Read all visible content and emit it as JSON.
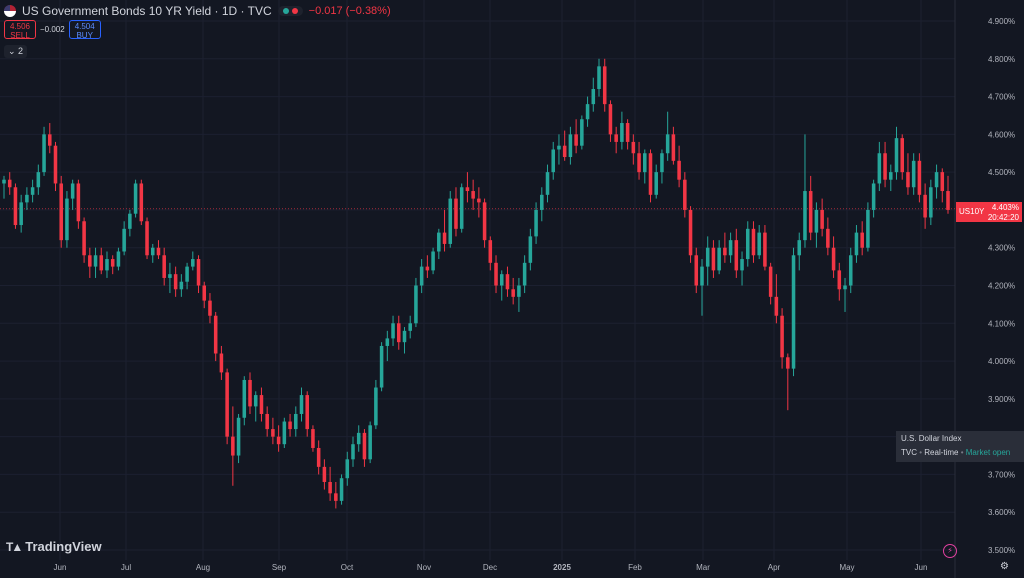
{
  "legend": {
    "title": "US Government Bonds 10 YR Yield · 1D · TVC",
    "change": "−0.017 (−0.38%)",
    "colors": {
      "up": "#26a69a",
      "down": "#f23645"
    }
  },
  "trade": {
    "sell_price": "4.506",
    "sell_label": "SELL",
    "spread": "−0.002",
    "buy_price": "4.504",
    "buy_label": "BUY"
  },
  "indicator_toggle": "⌄ 2",
  "price_tag": {
    "symbol": "US10Y",
    "value": "4.403%",
    "countdown": "20:42:20"
  },
  "info_box": {
    "title": "U.S. Dollar Index",
    "source": "TVC",
    "mode": "Real-time",
    "status": "Market open"
  },
  "brand": "TradingView",
  "chart_data": {
    "type": "candlestick",
    "title": "US Government Bonds 10 YR Yield · 1D · TVC",
    "ylim": [
      3.5,
      4.9
    ],
    "yticks": [
      "4.900%",
      "4.800%",
      "4.700%",
      "4.600%",
      "4.500%",
      "4.400%",
      "4.300%",
      "4.200%",
      "4.100%",
      "4.000%",
      "3.900%",
      "3.800%",
      "3.700%",
      "3.600%",
      "3.500%"
    ],
    "yvalues": [
      4.9,
      4.8,
      4.7,
      4.6,
      4.5,
      4.4,
      4.3,
      4.2,
      4.1,
      4.0,
      3.9,
      3.8,
      3.7,
      3.6,
      3.5
    ],
    "xticks": [
      "Jun",
      "Jul",
      "Aug",
      "Sep",
      "Oct",
      "Nov",
      "Dec",
      "2025",
      "Feb",
      "Mar",
      "Apr",
      "May",
      "Jun"
    ],
    "last_price": 4.403,
    "series": [
      {
        "o": 4.47,
        "h": 4.49,
        "l": 4.43,
        "c": 4.48
      },
      {
        "o": 4.48,
        "h": 4.5,
        "l": 4.44,
        "c": 4.46
      },
      {
        "o": 4.46,
        "h": 4.47,
        "l": 4.35,
        "c": 4.36
      },
      {
        "o": 4.36,
        "h": 4.44,
        "l": 4.34,
        "c": 4.42
      },
      {
        "o": 4.42,
        "h": 4.46,
        "l": 4.4,
        "c": 4.44
      },
      {
        "o": 4.44,
        "h": 4.48,
        "l": 4.42,
        "c": 4.46
      },
      {
        "o": 4.46,
        "h": 4.52,
        "l": 4.44,
        "c": 4.5
      },
      {
        "o": 4.5,
        "h": 4.62,
        "l": 4.49,
        "c": 4.6
      },
      {
        "o": 4.6,
        "h": 4.63,
        "l": 4.55,
        "c": 4.57
      },
      {
        "o": 4.57,
        "h": 4.58,
        "l": 4.45,
        "c": 4.47
      },
      {
        "o": 4.47,
        "h": 4.49,
        "l": 4.3,
        "c": 4.32
      },
      {
        "o": 4.32,
        "h": 4.45,
        "l": 4.3,
        "c": 4.43
      },
      {
        "o": 4.43,
        "h": 4.48,
        "l": 4.4,
        "c": 4.47
      },
      {
        "o": 4.47,
        "h": 4.48,
        "l": 4.35,
        "c": 4.37
      },
      {
        "o": 4.37,
        "h": 4.38,
        "l": 4.26,
        "c": 4.28
      },
      {
        "o": 4.28,
        "h": 4.3,
        "l": 4.22,
        "c": 4.25
      },
      {
        "o": 4.25,
        "h": 4.3,
        "l": 4.22,
        "c": 4.28
      },
      {
        "o": 4.28,
        "h": 4.3,
        "l": 4.23,
        "c": 4.24
      },
      {
        "o": 4.24,
        "h": 4.29,
        "l": 4.22,
        "c": 4.27
      },
      {
        "o": 4.27,
        "h": 4.28,
        "l": 4.23,
        "c": 4.25
      },
      {
        "o": 4.25,
        "h": 4.3,
        "l": 4.24,
        "c": 4.29
      },
      {
        "o": 4.29,
        "h": 4.37,
        "l": 4.28,
        "c": 4.35
      },
      {
        "o": 4.35,
        "h": 4.4,
        "l": 4.33,
        "c": 4.39
      },
      {
        "o": 4.39,
        "h": 4.48,
        "l": 4.38,
        "c": 4.47
      },
      {
        "o": 4.47,
        "h": 4.48,
        "l": 4.36,
        "c": 4.37
      },
      {
        "o": 4.37,
        "h": 4.38,
        "l": 4.27,
        "c": 4.28
      },
      {
        "o": 4.28,
        "h": 4.31,
        "l": 4.26,
        "c": 4.3
      },
      {
        "o": 4.3,
        "h": 4.32,
        "l": 4.27,
        "c": 4.28
      },
      {
        "o": 4.28,
        "h": 4.3,
        "l": 4.2,
        "c": 4.22
      },
      {
        "o": 4.22,
        "h": 4.26,
        "l": 4.18,
        "c": 4.23
      },
      {
        "o": 4.23,
        "h": 4.25,
        "l": 4.17,
        "c": 4.19
      },
      {
        "o": 4.19,
        "h": 4.23,
        "l": 4.17,
        "c": 4.21
      },
      {
        "o": 4.21,
        "h": 4.26,
        "l": 4.19,
        "c": 4.25
      },
      {
        "o": 4.25,
        "h": 4.29,
        "l": 4.24,
        "c": 4.27
      },
      {
        "o": 4.27,
        "h": 4.28,
        "l": 4.18,
        "c": 4.2
      },
      {
        "o": 4.2,
        "h": 4.21,
        "l": 4.14,
        "c": 4.16
      },
      {
        "o": 4.16,
        "h": 4.18,
        "l": 4.1,
        "c": 4.12
      },
      {
        "o": 4.12,
        "h": 4.13,
        "l": 4.0,
        "c": 4.02
      },
      {
        "o": 4.02,
        "h": 4.04,
        "l": 3.95,
        "c": 3.97
      },
      {
        "o": 3.97,
        "h": 3.98,
        "l": 3.78,
        "c": 3.8
      },
      {
        "o": 3.8,
        "h": 3.88,
        "l": 3.67,
        "c": 3.75
      },
      {
        "o": 3.75,
        "h": 3.86,
        "l": 3.73,
        "c": 3.85
      },
      {
        "o": 3.85,
        "h": 3.96,
        "l": 3.83,
        "c": 3.95
      },
      {
        "o": 3.95,
        "h": 3.97,
        "l": 3.86,
        "c": 3.88
      },
      {
        "o": 3.88,
        "h": 3.92,
        "l": 3.84,
        "c": 3.91
      },
      {
        "o": 3.91,
        "h": 3.93,
        "l": 3.84,
        "c": 3.86
      },
      {
        "o": 3.86,
        "h": 3.88,
        "l": 3.8,
        "c": 3.82
      },
      {
        "o": 3.82,
        "h": 3.85,
        "l": 3.78,
        "c": 3.8
      },
      {
        "o": 3.8,
        "h": 3.83,
        "l": 3.76,
        "c": 3.78
      },
      {
        "o": 3.78,
        "h": 3.85,
        "l": 3.77,
        "c": 3.84
      },
      {
        "o": 3.84,
        "h": 3.86,
        "l": 3.8,
        "c": 3.82
      },
      {
        "o": 3.82,
        "h": 3.88,
        "l": 3.8,
        "c": 3.86
      },
      {
        "o": 3.86,
        "h": 3.93,
        "l": 3.84,
        "c": 3.91
      },
      {
        "o": 3.91,
        "h": 3.92,
        "l": 3.8,
        "c": 3.82
      },
      {
        "o": 3.82,
        "h": 3.83,
        "l": 3.76,
        "c": 3.77
      },
      {
        "o": 3.77,
        "h": 3.79,
        "l": 3.7,
        "c": 3.72
      },
      {
        "o": 3.72,
        "h": 3.74,
        "l": 3.66,
        "c": 3.68
      },
      {
        "o": 3.68,
        "h": 3.72,
        "l": 3.63,
        "c": 3.65
      },
      {
        "o": 3.65,
        "h": 3.68,
        "l": 3.61,
        "c": 3.63
      },
      {
        "o": 3.63,
        "h": 3.7,
        "l": 3.62,
        "c": 3.69
      },
      {
        "o": 3.69,
        "h": 3.76,
        "l": 3.67,
        "c": 3.74
      },
      {
        "o": 3.74,
        "h": 3.8,
        "l": 3.72,
        "c": 3.78
      },
      {
        "o": 3.78,
        "h": 3.83,
        "l": 3.76,
        "c": 3.81
      },
      {
        "o": 3.81,
        "h": 3.82,
        "l": 3.72,
        "c": 3.74
      },
      {
        "o": 3.74,
        "h": 3.84,
        "l": 3.73,
        "c": 3.83
      },
      {
        "o": 3.83,
        "h": 3.95,
        "l": 3.82,
        "c": 3.93
      },
      {
        "o": 3.93,
        "h": 4.05,
        "l": 3.92,
        "c": 4.04
      },
      {
        "o": 4.04,
        "h": 4.08,
        "l": 4.0,
        "c": 4.06
      },
      {
        "o": 4.06,
        "h": 4.12,
        "l": 4.04,
        "c": 4.1
      },
      {
        "o": 4.1,
        "h": 4.12,
        "l": 4.03,
        "c": 4.05
      },
      {
        "o": 4.05,
        "h": 4.09,
        "l": 4.02,
        "c": 4.08
      },
      {
        "o": 4.08,
        "h": 4.12,
        "l": 4.06,
        "c": 4.1
      },
      {
        "o": 4.1,
        "h": 4.22,
        "l": 4.09,
        "c": 4.2
      },
      {
        "o": 4.2,
        "h": 4.27,
        "l": 4.18,
        "c": 4.25
      },
      {
        "o": 4.25,
        "h": 4.28,
        "l": 4.22,
        "c": 4.24
      },
      {
        "o": 4.24,
        "h": 4.3,
        "l": 4.23,
        "c": 4.29
      },
      {
        "o": 4.29,
        "h": 4.35,
        "l": 4.27,
        "c": 4.34
      },
      {
        "o": 4.34,
        "h": 4.4,
        "l": 4.29,
        "c": 4.31
      },
      {
        "o": 4.31,
        "h": 4.45,
        "l": 4.3,
        "c": 4.43
      },
      {
        "o": 4.43,
        "h": 4.46,
        "l": 4.33,
        "c": 4.35
      },
      {
        "o": 4.35,
        "h": 4.47,
        "l": 4.34,
        "c": 4.46
      },
      {
        "o": 4.46,
        "h": 4.5,
        "l": 4.42,
        "c": 4.45
      },
      {
        "o": 4.45,
        "h": 4.48,
        "l": 4.4,
        "c": 4.43
      },
      {
        "o": 4.43,
        "h": 4.46,
        "l": 4.38,
        "c": 4.42
      },
      {
        "o": 4.42,
        "h": 4.43,
        "l": 4.3,
        "c": 4.32
      },
      {
        "o": 4.32,
        "h": 4.33,
        "l": 4.24,
        "c": 4.26
      },
      {
        "o": 4.26,
        "h": 4.28,
        "l": 4.18,
        "c": 4.2
      },
      {
        "o": 4.2,
        "h": 4.24,
        "l": 4.16,
        "c": 4.23
      },
      {
        "o": 4.23,
        "h": 4.25,
        "l": 4.17,
        "c": 4.19
      },
      {
        "o": 4.19,
        "h": 4.22,
        "l": 4.15,
        "c": 4.17
      },
      {
        "o": 4.17,
        "h": 4.22,
        "l": 4.13,
        "c": 4.2
      },
      {
        "o": 4.2,
        "h": 4.28,
        "l": 4.18,
        "c": 4.26
      },
      {
        "o": 4.26,
        "h": 4.35,
        "l": 4.24,
        "c": 4.33
      },
      {
        "o": 4.33,
        "h": 4.42,
        "l": 4.31,
        "c": 4.4
      },
      {
        "o": 4.4,
        "h": 4.46,
        "l": 4.37,
        "c": 4.44
      },
      {
        "o": 4.44,
        "h": 4.52,
        "l": 4.42,
        "c": 4.5
      },
      {
        "o": 4.5,
        "h": 4.58,
        "l": 4.48,
        "c": 4.56
      },
      {
        "o": 4.56,
        "h": 4.6,
        "l": 4.52,
        "c": 4.57
      },
      {
        "o": 4.57,
        "h": 4.61,
        "l": 4.53,
        "c": 4.54
      },
      {
        "o": 4.54,
        "h": 4.62,
        "l": 4.52,
        "c": 4.6
      },
      {
        "o": 4.6,
        "h": 4.64,
        "l": 4.55,
        "c": 4.57
      },
      {
        "o": 4.57,
        "h": 4.65,
        "l": 4.56,
        "c": 4.64
      },
      {
        "o": 4.64,
        "h": 4.7,
        "l": 4.62,
        "c": 4.68
      },
      {
        "o": 4.68,
        "h": 4.75,
        "l": 4.66,
        "c": 4.72
      },
      {
        "o": 4.72,
        "h": 4.8,
        "l": 4.7,
        "c": 4.78
      },
      {
        "o": 4.78,
        "h": 4.8,
        "l": 4.66,
        "c": 4.68
      },
      {
        "o": 4.68,
        "h": 4.69,
        "l": 4.58,
        "c": 4.6
      },
      {
        "o": 4.6,
        "h": 4.62,
        "l": 4.55,
        "c": 4.58
      },
      {
        "o": 4.58,
        "h": 4.66,
        "l": 4.56,
        "c": 4.63
      },
      {
        "o": 4.63,
        "h": 4.64,
        "l": 4.56,
        "c": 4.58
      },
      {
        "o": 4.58,
        "h": 4.6,
        "l": 4.52,
        "c": 4.55
      },
      {
        "o": 4.55,
        "h": 4.58,
        "l": 4.48,
        "c": 4.5
      },
      {
        "o": 4.5,
        "h": 4.56,
        "l": 4.47,
        "c": 4.55
      },
      {
        "o": 4.55,
        "h": 4.56,
        "l": 4.42,
        "c": 4.44
      },
      {
        "o": 4.44,
        "h": 4.52,
        "l": 4.43,
        "c": 4.5
      },
      {
        "o": 4.5,
        "h": 4.56,
        "l": 4.47,
        "c": 4.55
      },
      {
        "o": 4.55,
        "h": 4.66,
        "l": 4.53,
        "c": 4.6
      },
      {
        "o": 4.6,
        "h": 4.62,
        "l": 4.52,
        "c": 4.53
      },
      {
        "o": 4.53,
        "h": 4.57,
        "l": 4.46,
        "c": 4.48
      },
      {
        "o": 4.48,
        "h": 4.5,
        "l": 4.38,
        "c": 4.4
      },
      {
        "o": 4.4,
        "h": 4.41,
        "l": 4.26,
        "c": 4.28
      },
      {
        "o": 4.28,
        "h": 4.3,
        "l": 4.18,
        "c": 4.2
      },
      {
        "o": 4.2,
        "h": 4.27,
        "l": 4.12,
        "c": 4.25
      },
      {
        "o": 4.25,
        "h": 4.33,
        "l": 4.2,
        "c": 4.3
      },
      {
        "o": 4.3,
        "h": 4.32,
        "l": 4.22,
        "c": 4.24
      },
      {
        "o": 4.24,
        "h": 4.32,
        "l": 4.23,
        "c": 4.3
      },
      {
        "o": 4.3,
        "h": 4.34,
        "l": 4.26,
        "c": 4.28
      },
      {
        "o": 4.28,
        "h": 4.34,
        "l": 4.26,
        "c": 4.32
      },
      {
        "o": 4.32,
        "h": 4.35,
        "l": 4.22,
        "c": 4.24
      },
      {
        "o": 4.24,
        "h": 4.29,
        "l": 4.2,
        "c": 4.27
      },
      {
        "o": 4.27,
        "h": 4.37,
        "l": 4.25,
        "c": 4.35
      },
      {
        "o": 4.35,
        "h": 4.37,
        "l": 4.26,
        "c": 4.28
      },
      {
        "o": 4.28,
        "h": 4.36,
        "l": 4.27,
        "c": 4.34
      },
      {
        "o": 4.34,
        "h": 4.36,
        "l": 4.24,
        "c": 4.25
      },
      {
        "o": 4.25,
        "h": 4.26,
        "l": 4.15,
        "c": 4.17
      },
      {
        "o": 4.17,
        "h": 4.23,
        "l": 4.1,
        "c": 4.12
      },
      {
        "o": 4.12,
        "h": 4.14,
        "l": 3.98,
        "c": 4.01
      },
      {
        "o": 4.01,
        "h": 4.02,
        "l": 3.87,
        "c": 3.98
      },
      {
        "o": 3.98,
        "h": 4.3,
        "l": 3.96,
        "c": 4.28
      },
      {
        "o": 4.28,
        "h": 4.34,
        "l": 4.24,
        "c": 4.32
      },
      {
        "o": 4.32,
        "h": 4.6,
        "l": 4.3,
        "c": 4.45
      },
      {
        "o": 4.45,
        "h": 4.49,
        "l": 4.32,
        "c": 4.34
      },
      {
        "o": 4.34,
        "h": 4.42,
        "l": 4.3,
        "c": 4.4
      },
      {
        "o": 4.4,
        "h": 4.43,
        "l": 4.33,
        "c": 4.35
      },
      {
        "o": 4.35,
        "h": 4.38,
        "l": 4.28,
        "c": 4.3
      },
      {
        "o": 4.3,
        "h": 4.33,
        "l": 4.22,
        "c": 4.24
      },
      {
        "o": 4.24,
        "h": 4.26,
        "l": 4.16,
        "c": 4.19
      },
      {
        "o": 4.19,
        "h": 4.22,
        "l": 4.13,
        "c": 4.2
      },
      {
        "o": 4.2,
        "h": 4.3,
        "l": 4.18,
        "c": 4.28
      },
      {
        "o": 4.28,
        "h": 4.36,
        "l": 4.26,
        "c": 4.34
      },
      {
        "o": 4.34,
        "h": 4.37,
        "l": 4.28,
        "c": 4.3
      },
      {
        "o": 4.3,
        "h": 4.42,
        "l": 4.29,
        "c": 4.4
      },
      {
        "o": 4.4,
        "h": 4.48,
        "l": 4.38,
        "c": 4.47
      },
      {
        "o": 4.47,
        "h": 4.58,
        "l": 4.45,
        "c": 4.55
      },
      {
        "o": 4.55,
        "h": 4.58,
        "l": 4.46,
        "c": 4.48
      },
      {
        "o": 4.48,
        "h": 4.52,
        "l": 4.45,
        "c": 4.5
      },
      {
        "o": 4.5,
        "h": 4.62,
        "l": 4.48,
        "c": 4.59
      },
      {
        "o": 4.59,
        "h": 4.6,
        "l": 4.48,
        "c": 4.5
      },
      {
        "o": 4.5,
        "h": 4.55,
        "l": 4.44,
        "c": 4.46
      },
      {
        "o": 4.46,
        "h": 4.55,
        "l": 4.44,
        "c": 4.53
      },
      {
        "o": 4.53,
        "h": 4.55,
        "l": 4.42,
        "c": 4.44
      },
      {
        "o": 4.44,
        "h": 4.47,
        "l": 4.35,
        "c": 4.38
      },
      {
        "o": 4.38,
        "h": 4.48,
        "l": 4.36,
        "c": 4.46
      },
      {
        "o": 4.46,
        "h": 4.52,
        "l": 4.43,
        "c": 4.5
      },
      {
        "o": 4.5,
        "h": 4.51,
        "l": 4.42,
        "c": 4.45
      },
      {
        "o": 4.45,
        "h": 4.49,
        "l": 4.39,
        "c": 4.4
      }
    ]
  }
}
